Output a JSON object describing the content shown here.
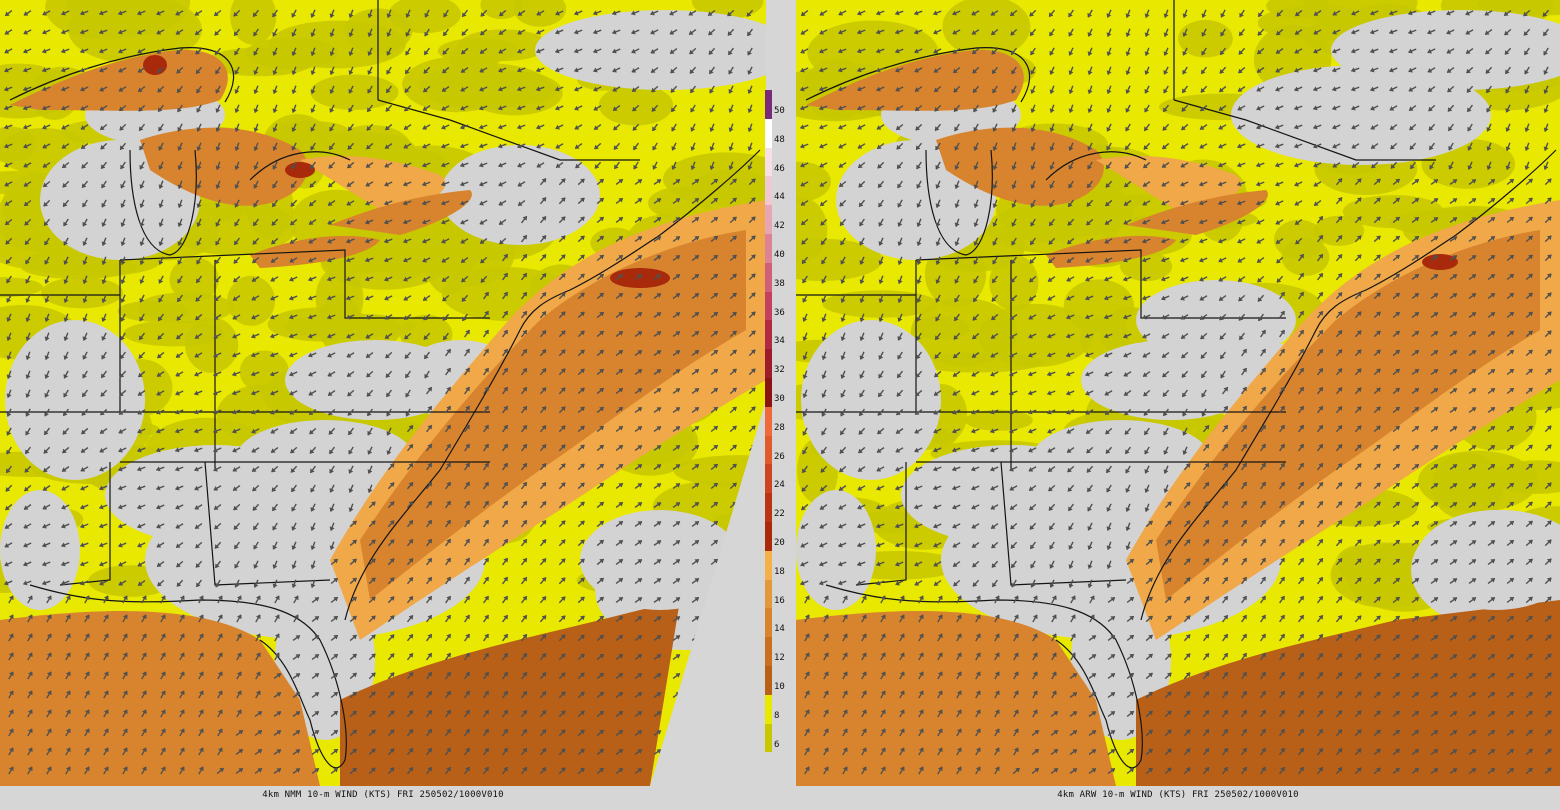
{
  "panels": [
    {
      "id": "left",
      "caption": "4km NMM 10-m WIND (KTS) FRI 250502/1000V010"
    },
    {
      "id": "right",
      "caption": "4km ARW 10-m WIND (KTS) FRI 250502/1000V010"
    }
  ],
  "colorbar": {
    "labels": [
      "50",
      "48",
      "46",
      "44",
      "42",
      "40",
      "38",
      "36",
      "34",
      "32",
      "30",
      "28",
      "26",
      "24",
      "22",
      "20",
      "18",
      "16",
      "14",
      "12",
      "10",
      "8",
      "6"
    ],
    "colors": [
      "#7a2a7a",
      "#ffffff",
      "#f6e0e8",
      "#eec8d2",
      "#e6a6b4",
      "#dc8496",
      "#d0607a",
      "#c24060",
      "#b02a44",
      "#9c1c2c",
      "#8a1414",
      "#ee6a3a",
      "#e05a2c",
      "#cc4420",
      "#b83414",
      "#a82a0a",
      "#f4b04a",
      "#e4983e",
      "#d8842e",
      "#c87020",
      "#b86018",
      "#e8e800",
      "#c8c800"
    ]
  },
  "legend": {
    "colors": {
      "calm": "#d3d3d3",
      "light_yellow": "#c8c800",
      "yellow": "#e8e800",
      "orange_light": "#f0a848",
      "orange": "#d8842e",
      "orange_dark": "#b86018",
      "red": "#a82a0a",
      "arrow": "#505050",
      "border": "#141414"
    }
  }
}
